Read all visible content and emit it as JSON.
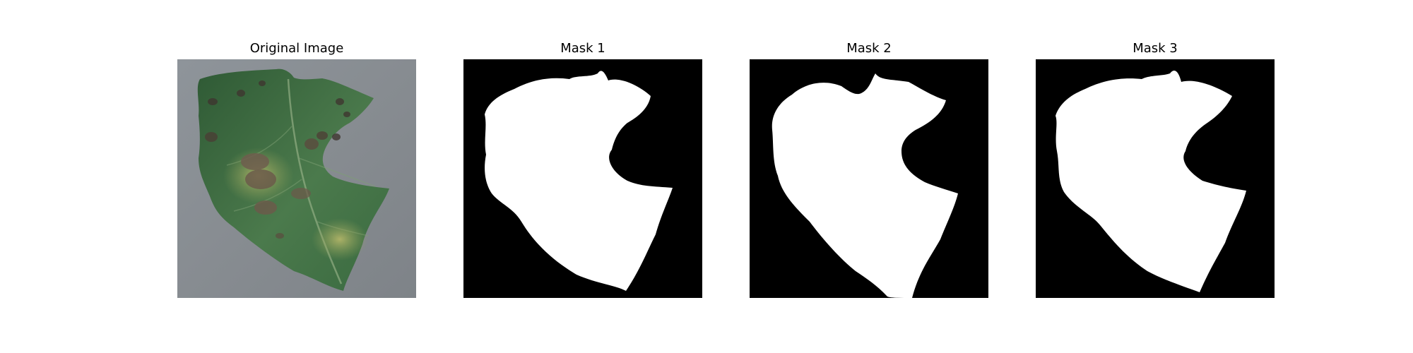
{
  "figure": {
    "panels": [
      {
        "title": "Original Image",
        "kind": "photo"
      },
      {
        "title": "Mask 1",
        "kind": "mask"
      },
      {
        "title": "Mask 2",
        "kind": "mask"
      },
      {
        "title": "Mask 3",
        "kind": "mask"
      }
    ]
  },
  "colors": {
    "background": "#ffffff",
    "mask_background": "#000000",
    "mask_foreground": "#ffffff",
    "photo_backdrop": "#8a8f94",
    "leaf_green": "#3f6b43",
    "leaf_lesion": "#6b5a4a"
  }
}
